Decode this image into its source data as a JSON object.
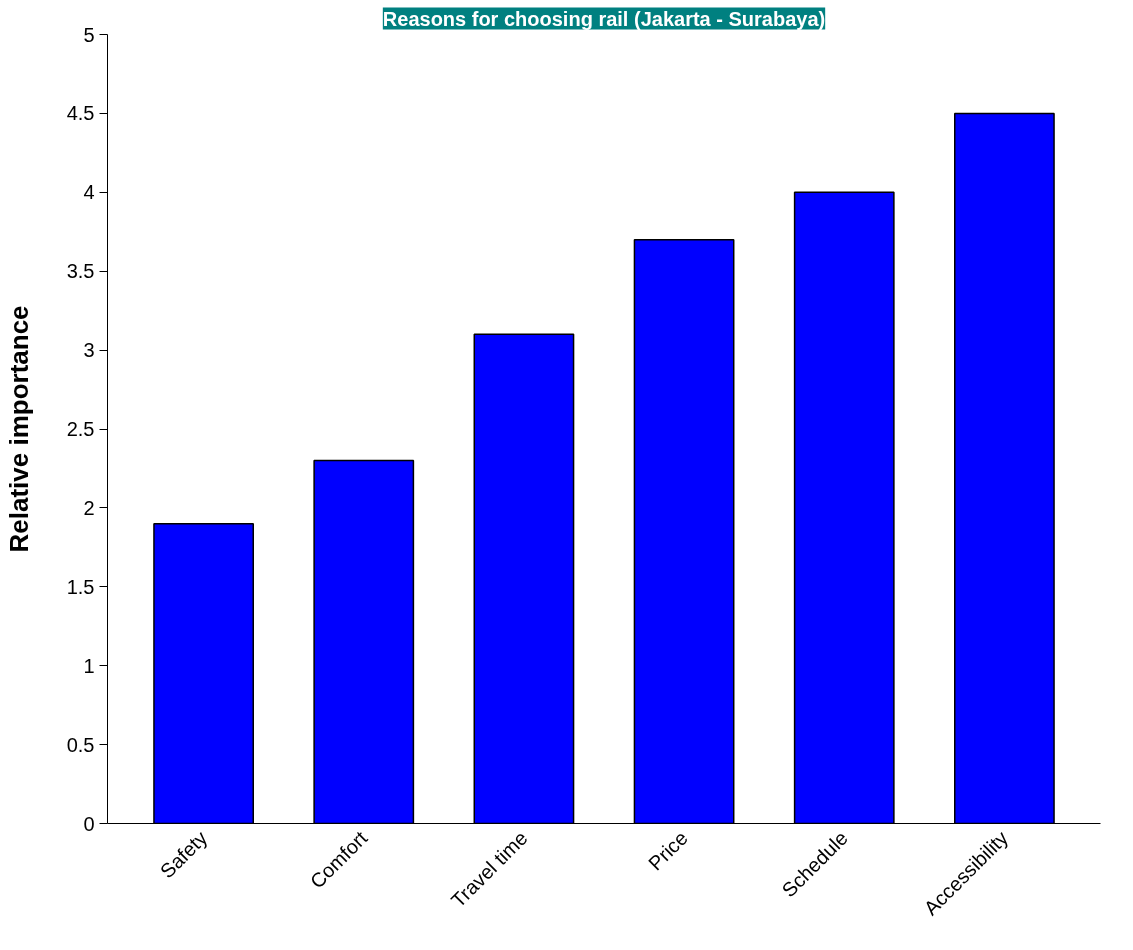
{
  "chart_data": {
    "type": "bar",
    "title": "Reasons for choosing rail (Jakarta - Surabaya)",
    "ylabel": "Relative importance",
    "categories": [
      "Safety",
      "Comfort",
      "Travel time",
      "Price",
      "Schedule",
      "Accessibility"
    ],
    "values": [
      1.9,
      2.3,
      3.1,
      3.7,
      4.0,
      4.5
    ],
    "color": "#0000ff",
    "ylim": [
      0,
      5
    ],
    "yticks": [
      0,
      0.5,
      1,
      1.5,
      2,
      2.5,
      3,
      3.5,
      4,
      4.5,
      5
    ],
    "grid": false
  }
}
